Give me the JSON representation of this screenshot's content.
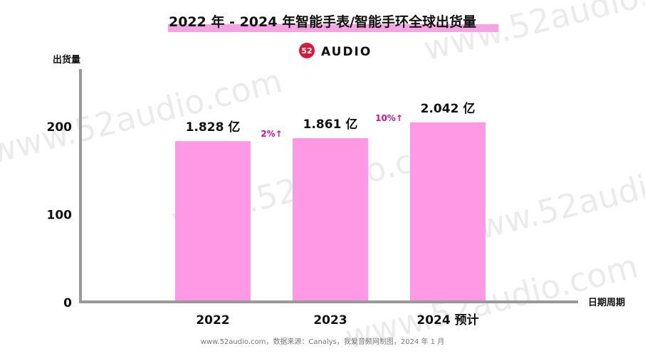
{
  "title": "2022 年 - 2024 年智能手表/智能手环全球出货量",
  "brand": {
    "name": "AUDIO",
    "logo_mark": "52"
  },
  "watermark": "www.52audio.com",
  "source": "www.52audio.com，数据来源：Canalys，我爱音频网制图，2024 年 1 月",
  "colors": {
    "bar": "#ff99e6",
    "accent": "#cc1199",
    "title_highlight": "#f5a3e3",
    "axis": "#999999",
    "logo": "#d8193a"
  },
  "chart_data": {
    "type": "bar",
    "title": "2022 年 - 2024 年智能手表/智能手环全球出货量",
    "ylabel": "出货量",
    "xlabel": "日期周期",
    "categories": [
      "2022",
      "2023",
      "2024 预计"
    ],
    "values": [
      182.8,
      186.1,
      204.2
    ],
    "value_labels": [
      "1.828 亿",
      "1.861 亿",
      "2.042 亿"
    ],
    "ylim": [
      0,
      300
    ],
    "yticks": [
      0,
      100,
      200
    ],
    "growth_annotations": [
      {
        "between": [
          0,
          1
        ],
        "text": "2%↑"
      },
      {
        "between": [
          1,
          2
        ],
        "text": "10%↑"
      }
    ],
    "grid": false
  }
}
